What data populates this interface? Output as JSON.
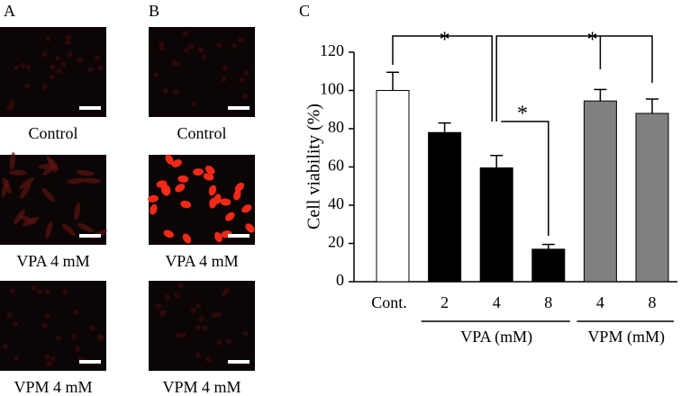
{
  "panels": {
    "a": "A",
    "b": "B",
    "c": "C"
  },
  "images": {
    "a": [
      "Control",
      "VPA 4 mM",
      "VPM 4 mM"
    ],
    "b": [
      "Control",
      "VPA 4 mM",
      "VPM 4 mM"
    ]
  },
  "chart_data": {
    "type": "bar",
    "y_label": "Cell viability (%)",
    "categories": [
      "Cont.",
      "2",
      "4",
      "8",
      "4",
      "8"
    ],
    "values": [
      100,
      78,
      59.5,
      17,
      94.5,
      88
    ],
    "errors": [
      9.5,
      5,
      6.5,
      2.5,
      6,
      7.5
    ],
    "colors": [
      "#ffffff",
      "#000000",
      "#000000",
      "#000000",
      "#808080",
      "#808080"
    ],
    "groups": [
      "VPA (mM)",
      "VPM (mM)"
    ],
    "significance": [
      "*",
      "*",
      "*"
    ],
    "ylim": [
      0,
      120
    ],
    "yticks": [
      0,
      20,
      40,
      60,
      80,
      100,
      120
    ]
  }
}
